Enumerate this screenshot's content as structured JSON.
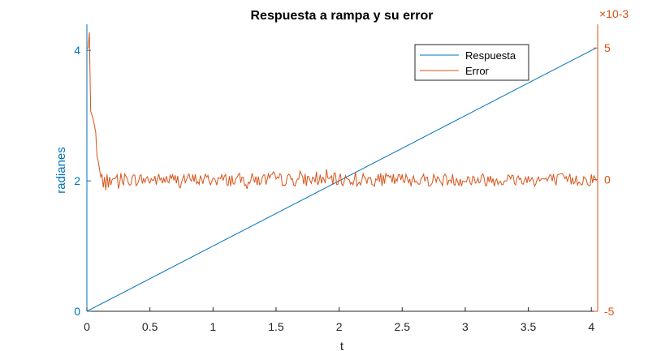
{
  "chart_data": {
    "type": "line",
    "title": "Respuesta a rampa y su error",
    "xlabel": "t",
    "ylabel_left": "radianes",
    "right_axis_multiplier": "×10-3",
    "xlim": [
      0,
      4.05
    ],
    "ylim_left": [
      0,
      4.4
    ],
    "ylim_right": [
      -5,
      5.9
    ],
    "x_ticks": [
      "0",
      "0.5",
      "1",
      "1.5",
      "2",
      "2.5",
      "3",
      "3.5",
      "4"
    ],
    "y_ticks_left": [
      "0",
      "2",
      "4"
    ],
    "y_ticks_right": [
      "-5",
      "0",
      "5"
    ],
    "legend_position": "top-right",
    "grid": false,
    "colors": {
      "respuesta": "#0072BD",
      "error": "#D95319"
    },
    "series": [
      {
        "name": "Respuesta",
        "axis": "left",
        "x": [
          0,
          4.04
        ],
        "y": [
          0,
          4.04
        ]
      },
      {
        "name": "Error",
        "axis": "right",
        "x": [
          0,
          0.01,
          0.02,
          0.025,
          0.03,
          0.05,
          0.07,
          0.08,
          0.09,
          0.1,
          0.11,
          0.12,
          0.13,
          0.14,
          0.15,
          0.16,
          0.17,
          0.18,
          0.19,
          0.2
        ],
        "y": [
          5.0,
          5.0,
          5.6,
          4.0,
          2.6,
          2.3,
          1.8,
          0.9,
          0.7,
          0.4,
          0.1,
          0.2,
          -0.3,
          0.1,
          -0.4,
          0.2,
          -0.3,
          0.1,
          -0.2,
          0.0
        ],
        "noise_range_after": [
          0.2,
          4.04
        ],
        "noise_amplitude": 0.25
      }
    ]
  }
}
